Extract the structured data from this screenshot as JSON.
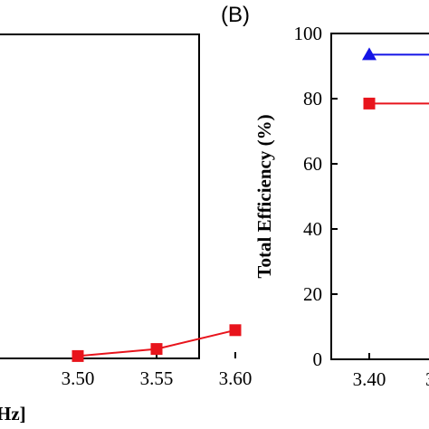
{
  "panel_b_label": "(B)",
  "chart_data": [
    {
      "panel": "A",
      "type": "line",
      "x_ticks": [
        "3.50",
        "3.55",
        "3.60"
      ],
      "xlabel_fragment": "Hz]",
      "x_range": [
        3.5,
        3.6
      ],
      "series": [
        {
          "color": "#e8141c",
          "marker": "square",
          "x": [
            3.5,
            3.55,
            3.6
          ],
          "y": [
            0.4,
            1.6,
            4.8
          ]
        }
      ]
    },
    {
      "panel": "B",
      "type": "line",
      "ylabel": "Total Efficiency (%)",
      "ylim": [
        0,
        100
      ],
      "y_ticks": [
        "0",
        "20",
        "40",
        "60",
        "80",
        "100"
      ],
      "x_ticks": [
        "3.40"
      ],
      "series": [
        {
          "color": "#1414e6",
          "marker": "triangle",
          "x": [
            3.4
          ],
          "y": [
            93.5
          ]
        },
        {
          "color": "#e8141c",
          "marker": "square",
          "x": [
            3.4
          ],
          "y": [
            78.5
          ]
        }
      ]
    }
  ]
}
